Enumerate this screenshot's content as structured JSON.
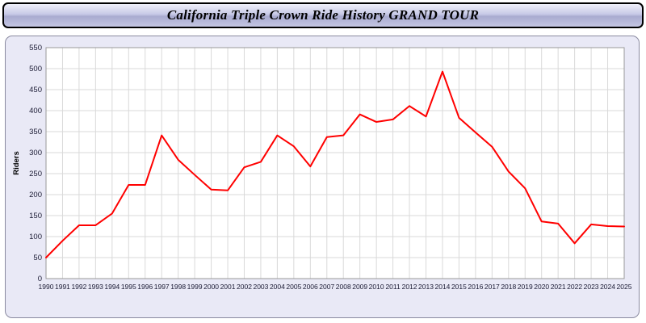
{
  "title": "California Triple Crown Ride History GRAND TOUR",
  "chart_data": {
    "type": "line",
    "title": "California Triple Crown Ride History GRAND TOUR",
    "xlabel": "",
    "ylabel": "Riders",
    "ylim": [
      0,
      550
    ],
    "ytick_step": 50,
    "grid": true,
    "legend_position": "none",
    "line_color": "#ff0000",
    "categories": [
      1990,
      1991,
      1992,
      1993,
      1994,
      1995,
      1996,
      1997,
      1998,
      1999,
      2000,
      2001,
      2002,
      2003,
      2004,
      2005,
      2006,
      2007,
      2008,
      2009,
      2010,
      2011,
      2012,
      2013,
      2014,
      2015,
      2016,
      2017,
      2018,
      2019,
      2020,
      2021,
      2022,
      2023,
      2024,
      2025
    ],
    "series": [
      {
        "name": "Riders",
        "values": [
          50,
          90,
          127,
          127,
          155,
          223,
          223,
          341,
          283,
          247,
          212,
          210,
          265,
          278,
          341,
          315,
          267,
          337,
          341,
          391,
          373,
          379,
          411,
          386,
          493,
          383,
          348,
          314,
          255,
          215,
          136,
          131,
          84,
          129,
          125,
          124
        ]
      }
    ]
  },
  "colors": {
    "plot_background": "#ffffff",
    "panel_background": "#e9e9f6",
    "gridline": "#d9d9d9",
    "axis_border": "#999999",
    "tick_text": "#1a1a33",
    "line": "#ff0000"
  }
}
